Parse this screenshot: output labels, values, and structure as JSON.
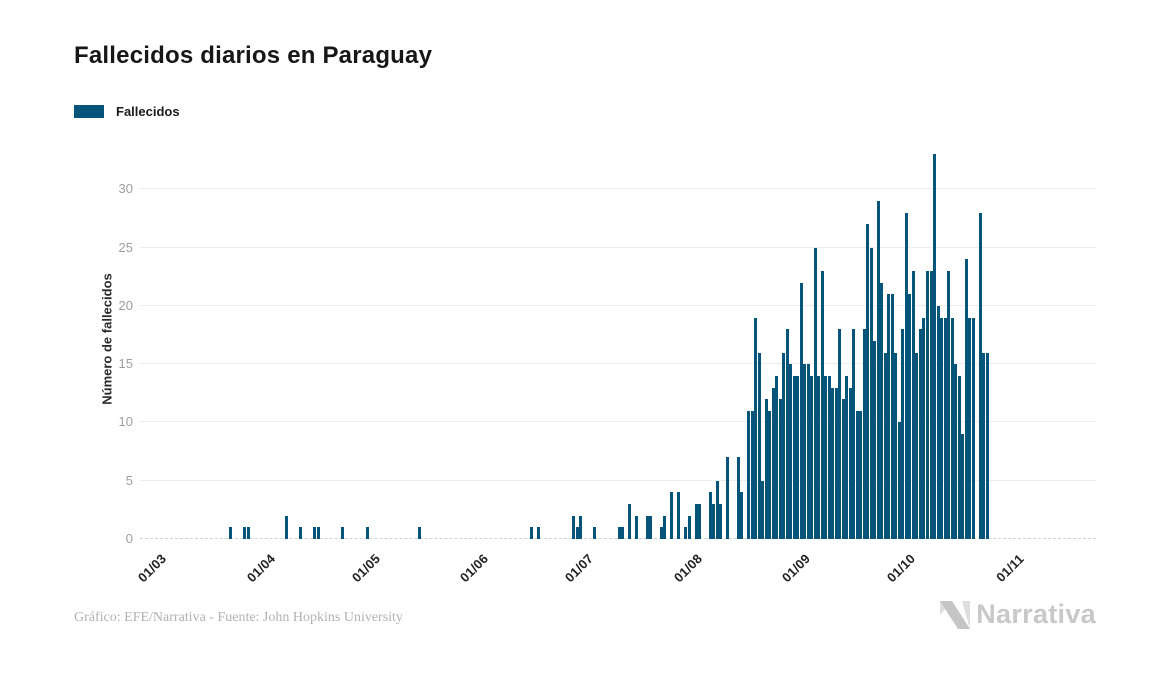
{
  "title": "Fallecidos diarios en Paraguay",
  "legend": {
    "label": "Fallecidos"
  },
  "footer": {
    "credit": "Gráfico: EFE/Narrativa - Fuente: John Hopkins University",
    "brand": "Narrativa"
  },
  "colors": {
    "bar": "#045579",
    "grid": "#ededed",
    "baseline": "#c9d5db",
    "title_text": "#171717",
    "y_tick_text": "#9e9e9e",
    "x_tick_text": "#222222",
    "credit_text": "#b3b1b1",
    "brand_text": "#c8c8c8",
    "logo_light": "#dedede",
    "logo_mid": "#c5c5c5"
  },
  "chart_data": {
    "type": "bar",
    "title": "Fallecidos diarios en Paraguay",
    "xlabel": "",
    "ylabel": "Número de fallecidos",
    "y_ticks": [
      0,
      5,
      10,
      15,
      20,
      25,
      30
    ],
    "ylim": [
      0,
      33
    ],
    "grid": true,
    "legend_position": "top-left",
    "x_tick_labels": [
      "01/03",
      "01/04",
      "01/05",
      "01/06",
      "01/07",
      "01/08",
      "01/09",
      "01/10",
      "01/11"
    ],
    "x_tick_days": [
      0,
      31,
      61,
      92,
      122,
      153,
      184,
      214,
      245
    ],
    "n_days": 245,
    "x_range_note": "daily values from 01/03 to 31/10",
    "series": [
      {
        "name": "Fallecidos",
        "values": [
          0,
          0,
          0,
          0,
          0,
          0,
          0,
          0,
          0,
          0,
          0,
          0,
          0,
          0,
          0,
          0,
          0,
          0,
          0,
          0,
          0,
          0,
          1,
          0,
          0,
          0,
          1,
          1,
          0,
          0,
          0,
          0,
          0,
          0,
          0,
          0,
          0,
          0,
          2,
          0,
          0,
          0,
          1,
          0,
          0,
          0,
          1,
          1,
          0,
          0,
          0,
          0,
          0,
          0,
          1,
          0,
          0,
          0,
          0,
          0,
          0,
          1,
          0,
          0,
          0,
          0,
          0,
          0,
          0,
          0,
          0,
          0,
          0,
          0,
          0,
          0,
          1,
          0,
          0,
          0,
          0,
          0,
          0,
          0,
          0,
          0,
          0,
          0,
          0,
          0,
          0,
          0,
          0,
          0,
          0,
          0,
          0,
          0,
          0,
          0,
          0,
          0,
          0,
          0,
          0,
          0,
          0,
          0,
          1,
          0,
          1,
          0,
          0,
          0,
          0,
          0,
          0,
          0,
          0,
          0,
          2,
          1,
          2,
          0,
          0,
          0,
          1,
          0,
          0,
          0,
          0,
          0,
          0,
          1,
          1,
          0,
          3,
          0,
          2,
          0,
          0,
          2,
          2,
          0,
          0,
          1,
          2,
          0,
          4,
          0,
          4,
          0,
          1,
          2,
          0,
          3,
          3,
          0,
          0,
          4,
          3,
          5,
          3,
          0,
          7,
          0,
          0,
          7,
          4,
          0,
          11,
          11,
          19,
          16,
          5,
          12,
          11,
          13,
          14,
          12,
          16,
          18,
          15,
          14,
          14,
          22,
          15,
          15,
          14,
          25,
          14,
          23,
          14,
          14,
          13,
          13,
          18,
          12,
          14,
          13,
          18,
          11,
          11,
          18,
          27,
          25,
          17,
          29,
          22,
          16,
          21,
          21,
          16,
          10,
          18,
          28,
          21,
          23,
          16,
          18,
          19,
          23,
          23,
          33,
          20,
          19,
          19,
          23,
          19,
          15,
          14,
          9,
          24,
          19,
          19,
          0,
          28,
          16,
          16,
          0,
          0,
          0,
          0,
          0,
          0
        ]
      }
    ]
  }
}
